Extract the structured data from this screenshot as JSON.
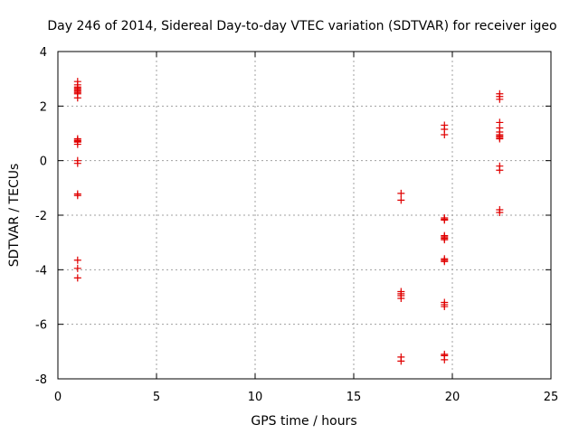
{
  "chart_data": {
    "type": "scatter",
    "title": "Day 246 of 2014, Sidereal Day-to-day VTEC variation (SDTVAR) for receiver igeo",
    "xlabel": "GPS time / hours",
    "ylabel": "SDTVAR / TECUs",
    "xlim": [
      0,
      25
    ],
    "ylim": [
      -8,
      4
    ],
    "xticks": [
      0,
      5,
      10,
      15,
      20,
      25
    ],
    "yticks": [
      -8,
      -6,
      -4,
      -2,
      0,
      2,
      4
    ],
    "xtick_labels": [
      "0",
      "5",
      "10",
      "15",
      "20",
      "25"
    ],
    "ytick_labels": [
      "-8",
      "-6",
      "-4",
      "-2",
      "0",
      "2",
      "4"
    ],
    "grid": true,
    "marker": "+",
    "color": "#e00000",
    "points": [
      [
        1.0,
        2.9
      ],
      [
        1.0,
        2.78
      ],
      [
        1.0,
        2.7
      ],
      [
        1.0,
        2.65
      ],
      [
        1.0,
        2.6
      ],
      [
        1.0,
        2.55
      ],
      [
        1.0,
        2.5
      ],
      [
        1.0,
        2.45
      ],
      [
        1.0,
        2.3
      ],
      [
        1.0,
        0.8
      ],
      [
        1.0,
        0.75
      ],
      [
        1.0,
        0.72
      ],
      [
        1.0,
        0.68
      ],
      [
        1.0,
        0.6
      ],
      [
        1.0,
        0.0
      ],
      [
        1.0,
        -0.1
      ],
      [
        1.0,
        -1.22
      ],
      [
        1.0,
        -1.28
      ],
      [
        1.0,
        -3.65
      ],
      [
        1.0,
        -3.95
      ],
      [
        1.0,
        -4.3
      ],
      [
        17.4,
        -1.2
      ],
      [
        17.4,
        -1.45
      ],
      [
        17.4,
        -4.8
      ],
      [
        17.4,
        -4.88
      ],
      [
        17.4,
        -4.95
      ],
      [
        17.4,
        -5.05
      ],
      [
        17.4,
        -7.2
      ],
      [
        17.4,
        -7.35
      ],
      [
        19.6,
        1.3
      ],
      [
        19.6,
        1.15
      ],
      [
        19.6,
        0.95
      ],
      [
        19.6,
        -2.1
      ],
      [
        19.6,
        -2.15
      ],
      [
        19.6,
        -2.18
      ],
      [
        19.6,
        -2.75
      ],
      [
        19.6,
        -2.8
      ],
      [
        19.6,
        -2.85
      ],
      [
        19.6,
        -2.9
      ],
      [
        19.6,
        -3.6
      ],
      [
        19.6,
        -3.65
      ],
      [
        19.6,
        -3.7
      ],
      [
        19.6,
        -5.2
      ],
      [
        19.6,
        -5.28
      ],
      [
        19.6,
        -5.35
      ],
      [
        19.6,
        -7.1
      ],
      [
        19.6,
        -7.15
      ],
      [
        19.6,
        -7.3
      ],
      [
        22.4,
        2.45
      ],
      [
        22.4,
        2.35
      ],
      [
        22.4,
        2.25
      ],
      [
        22.4,
        1.4
      ],
      [
        22.4,
        1.2
      ],
      [
        22.4,
        1.05
      ],
      [
        22.4,
        0.95
      ],
      [
        22.4,
        0.9
      ],
      [
        22.4,
        0.85
      ],
      [
        22.4,
        0.8
      ],
      [
        22.4,
        -0.2
      ],
      [
        22.4,
        -0.35
      ],
      [
        22.4,
        -1.8
      ],
      [
        22.4,
        -1.9
      ]
    ]
  }
}
